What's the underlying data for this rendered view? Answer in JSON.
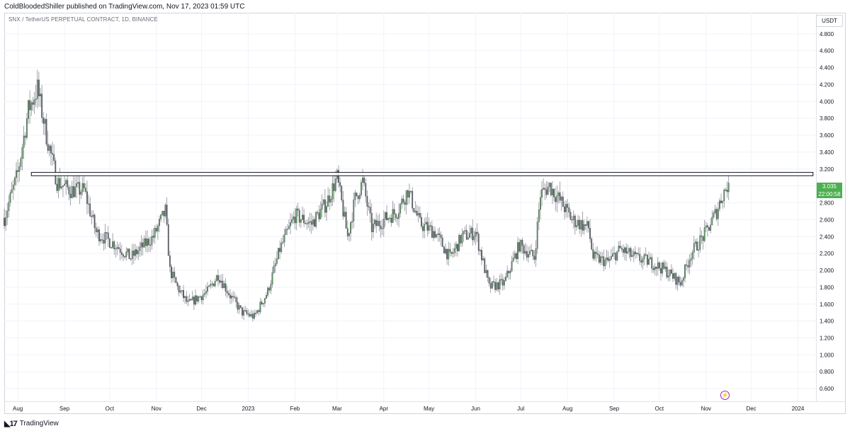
{
  "header": {
    "published_line": "ColdBloodedShiller published on TradingView.com, Nov 17, 2023 01:59 UTC",
    "symbol_line": "SNX / TetherUS PERPETUAL CONTRACT, 1D, BINANCE",
    "currency_button": "USDT"
  },
  "price_tag": {
    "price": "3.035",
    "countdown": "22:00:58"
  },
  "footer": {
    "logo_text": "TradingView"
  },
  "colors": {
    "up": "#5b9a5b",
    "down": "#5d6068",
    "resistance_box": "#131722",
    "last_price_bg": "#4caf50",
    "grid": "#f0f3fa"
  },
  "icons": {
    "flash": "lightning-icon",
    "logo": "tradingview-logo-icon"
  },
  "chart_data": {
    "type": "candlestick",
    "title": "SNX / TetherUS PERPETUAL CONTRACT, 1D, BINANCE",
    "xlabel": "",
    "ylabel": "",
    "ylim": [
      0.45,
      5.05
    ],
    "y_ticks": [
      "0.600",
      "0.800",
      "1.000",
      "1.200",
      "1.400",
      "1.600",
      "1.800",
      "2.000",
      "2.200",
      "2.400",
      "2.600",
      "2.800",
      "3.000",
      "3.200",
      "3.400",
      "3.600",
      "3.800",
      "4.000",
      "4.200",
      "4.400",
      "4.600",
      "4.800"
    ],
    "x_ticks": [
      "Aug",
      "Sep",
      "Oct",
      "Nov",
      "Dec",
      "2023",
      "Feb",
      "Mar",
      "Apr",
      "May",
      "Jun",
      "Jul",
      "Aug",
      "Sep",
      "Oct",
      "Nov",
      "Dec",
      "2024"
    ],
    "x_range": [
      "2022-07-23",
      "2024-01-13"
    ],
    "resistance_zone": {
      "from_date": "2022-08-10",
      "to_date": "2024-01-11",
      "low": 3.12,
      "high": 3.16
    },
    "last_price": 3.035,
    "price_path": [
      [
        "2022-07-23",
        2.62
      ],
      [
        "2022-08-01",
        3.15
      ],
      [
        "2022-08-08",
        3.9
      ],
      [
        "2022-08-14",
        4.15
      ],
      [
        "2022-08-20",
        3.6
      ],
      [
        "2022-08-27",
        3.05
      ],
      [
        "2022-09-05",
        2.95
      ],
      [
        "2022-09-14",
        2.95
      ],
      [
        "2022-09-22",
        2.45
      ],
      [
        "2022-10-05",
        2.3
      ],
      [
        "2022-10-15",
        2.15
      ],
      [
        "2022-10-30",
        2.4
      ],
      [
        "2022-11-07",
        2.7
      ],
      [
        "2022-11-10",
        2.0
      ],
      [
        "2022-11-15",
        1.8
      ],
      [
        "2022-11-22",
        1.6
      ],
      [
        "2022-12-05",
        1.75
      ],
      [
        "2022-12-12",
        1.95
      ],
      [
        "2022-12-20",
        1.7
      ],
      [
        "2022-12-28",
        1.5
      ],
      [
        "2023-01-05",
        1.45
      ],
      [
        "2023-01-14",
        1.75
      ],
      [
        "2023-01-22",
        2.25
      ],
      [
        "2023-02-01",
        2.65
      ],
      [
        "2023-02-12",
        2.55
      ],
      [
        "2023-02-22",
        2.8
      ],
      [
        "2023-03-01",
        3.1
      ],
      [
        "2023-03-08",
        2.4
      ],
      [
        "2023-03-13",
        2.85
      ],
      [
        "2023-03-18",
        3.05
      ],
      [
        "2023-03-24",
        2.5
      ],
      [
        "2023-04-01",
        2.6
      ],
      [
        "2023-04-10",
        2.7
      ],
      [
        "2023-04-17",
        2.95
      ],
      [
        "2023-04-25",
        2.55
      ],
      [
        "2023-05-05",
        2.45
      ],
      [
        "2023-05-15",
        2.15
      ],
      [
        "2023-05-23",
        2.4
      ],
      [
        "2023-06-01",
        2.45
      ],
      [
        "2023-06-10",
        1.8
      ],
      [
        "2023-06-20",
        1.85
      ],
      [
        "2023-06-30",
        2.3
      ],
      [
        "2023-07-10",
        2.15
      ],
      [
        "2023-07-14",
        2.9
      ],
      [
        "2023-07-20",
        3.0
      ],
      [
        "2023-07-28",
        2.8
      ],
      [
        "2023-08-04",
        2.6
      ],
      [
        "2023-08-15",
        2.5
      ],
      [
        "2023-08-18",
        2.15
      ],
      [
        "2023-08-28",
        2.1
      ],
      [
        "2023-09-05",
        2.25
      ],
      [
        "2023-09-15",
        2.15
      ],
      [
        "2023-09-25",
        2.1
      ],
      [
        "2023-10-05",
        2.0
      ],
      [
        "2023-10-15",
        1.85
      ],
      [
        "2023-10-22",
        2.2
      ],
      [
        "2023-11-01",
        2.45
      ],
      [
        "2023-11-08",
        2.7
      ],
      [
        "2023-11-12",
        2.9
      ],
      [
        "2023-11-16",
        3.035
      ]
    ]
  }
}
